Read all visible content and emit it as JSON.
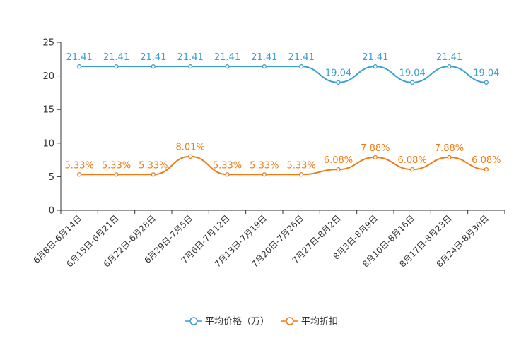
{
  "chart_data": {
    "type": "line",
    "title": "",
    "xlabel": "",
    "ylabel": "",
    "ylim": [
      0,
      25
    ],
    "yticks": [
      0,
      5,
      10,
      15,
      20,
      25
    ],
    "grid": false,
    "legend_position": "bottom-center",
    "categories": [
      "6月8日-6月14日",
      "6月15日-6月21日",
      "6月22日-6月28日",
      "6月29日-7月5日",
      "7月6日-7月12日",
      "7月13日-7月19日",
      "7月20日-7月26日",
      "7月27日-8月2日",
      "8月3日-8月9日",
      "8月10日-8月16日",
      "8月17日-8月23日",
      "8月24日-8月30日"
    ],
    "series": [
      {
        "name": "平均价格（万）",
        "color": "#3a9fd1",
        "values": [
          21.41,
          21.41,
          21.41,
          21.41,
          21.41,
          21.41,
          21.41,
          19.04,
          21.41,
          19.04,
          21.41,
          19.04
        ],
        "labels": [
          "21.41",
          "21.41",
          "21.41",
          "21.41",
          "21.41",
          "21.41",
          "21.41",
          "19.04",
          "21.41",
          "19.04",
          "21.41",
          "19.04"
        ]
      },
      {
        "name": "平均折扣",
        "color": "#f07b12",
        "values": [
          5.33,
          5.33,
          5.33,
          8.01,
          5.33,
          5.33,
          5.33,
          6.08,
          7.88,
          6.08,
          7.88,
          6.08
        ],
        "labels": [
          "5.33%",
          "5.33%",
          "5.33%",
          "8.01%",
          "5.33%",
          "5.33%",
          "5.33%",
          "6.08%",
          "7.88%",
          "6.08%",
          "7.88%",
          "6.08%"
        ]
      }
    ]
  }
}
